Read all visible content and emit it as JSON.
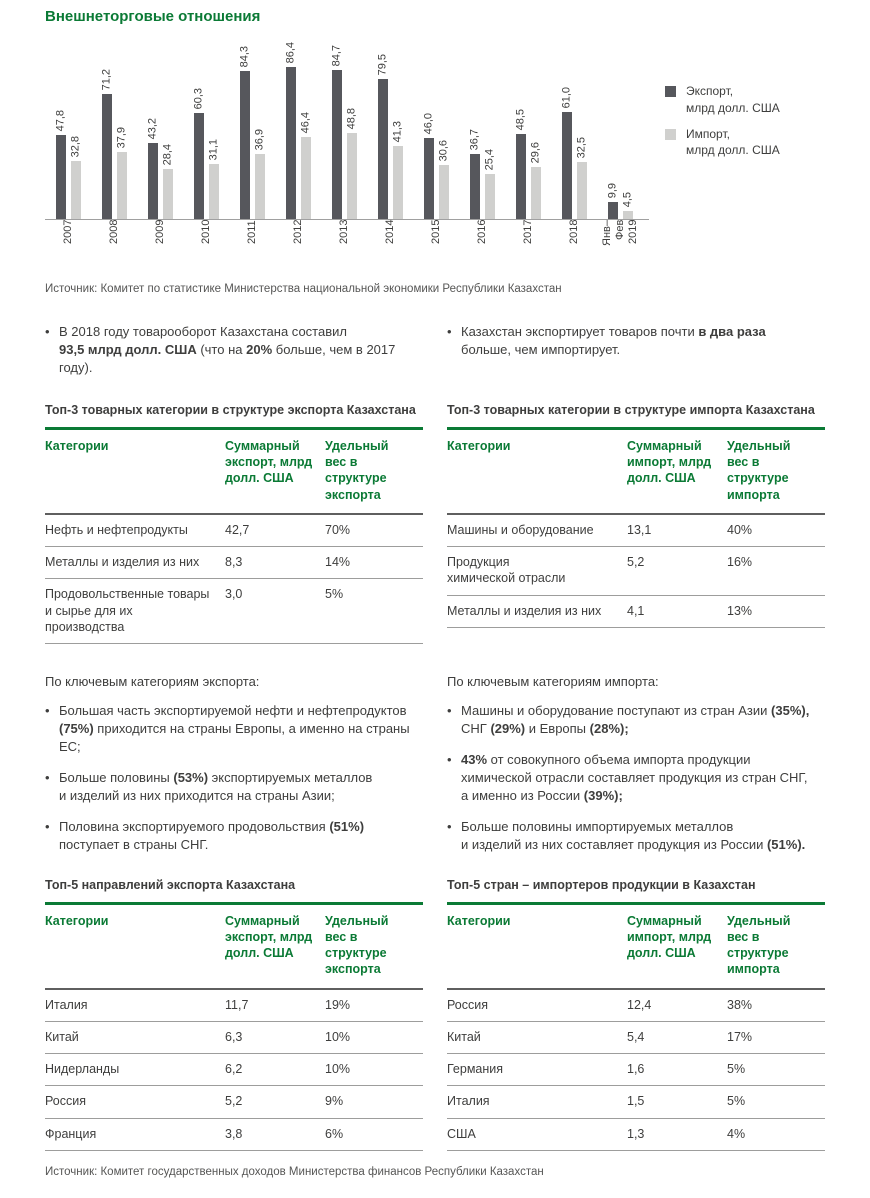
{
  "page": {
    "title": "Внешнеторговые отношения",
    "source_top": "Источник: Комитет по статистике Министерства национальной экономики Республики Казахстан",
    "source_bottom": "Источник: Комитет государственных доходов Министерства финансов Республики Казахстан"
  },
  "colors": {
    "green": "#0B7A35",
    "bar_dark": "#56575C",
    "bar_light": "#D0D0CE",
    "text": "#3E3E3D",
    "muted": "#565655"
  },
  "chart_data": {
    "type": "bar",
    "categories": [
      "2007",
      "2008",
      "2009",
      "2010",
      "2011",
      "2012",
      "2013",
      "2014",
      "2015",
      "2016",
      "2017",
      "2018",
      "Янв–\nФев\n2019"
    ],
    "series": [
      {
        "name": "Экспорт,\nмлрд долл. США",
        "color": "#56575C",
        "values": [
          47.8,
          71.2,
          43.2,
          60.3,
          84.3,
          86.4,
          84.7,
          79.5,
          46.0,
          36.7,
          48.5,
          61.0,
          9.9
        ]
      },
      {
        "name": "Импорт,\nмлрд долл. США",
        "color": "#D0D0CE",
        "values": [
          32.8,
          37.9,
          28.4,
          31.1,
          36.9,
          46.4,
          48.8,
          41.3,
          30.6,
          25.4,
          29.6,
          32.5,
          4.5
        ]
      }
    ],
    "title": "",
    "xlabel": "",
    "ylabel": "млрд долл. США",
    "ylim": [
      0,
      90
    ],
    "grid": false,
    "legend_position": "right",
    "value_labels": true,
    "decimal_separator": ","
  },
  "summary": {
    "left": [
      "В 2018 году товарооборот Казахстана составил\n**93,5 млрд долл. США** (что на **20%** больше, чем в 2017 году)."
    ],
    "right": [
      "Казахстан экспортирует товаров почти **в два раза**\nбольше, чем импортирует."
    ]
  },
  "tables": {
    "top_left": {
      "title": "Топ-3 товарных категории в структуре экспорта Казахстана",
      "headers": [
        "Категории",
        "Суммарный\nэкспорт, млрд\nдолл. США",
        "Удельный\nвес в структуре\nэкспорта"
      ],
      "rows": [
        [
          "Нефть и нефтепродукты",
          "42,7",
          "70%"
        ],
        [
          "Металлы и изделия из них",
          "8,3",
          "14%"
        ],
        [
          "Продовольственные товары\nи сырье для их производства",
          "3,0",
          "5%"
        ]
      ]
    },
    "top_right": {
      "title": "Топ-3 товарных категории в структуре импорта Казахстана",
      "headers": [
        "Категории",
        "Суммарный\nимпорт, млрд\nдолл. США",
        "Удельный\nвес в структуре\nимпорта"
      ],
      "rows": [
        [
          "Машины и оборудование",
          "13,1",
          "40%"
        ],
        [
          "Продукция\nхимической отрасли",
          "5,2",
          "16%"
        ],
        [
          "Металлы и изделия из них",
          "4,1",
          "13%"
        ]
      ]
    },
    "bottom_left": {
      "title": "Топ-5 направлений экспорта Казахстана",
      "headers": [
        "Категории",
        "Суммарный\nэкспорт, млрд\nдолл. США",
        "Удельный\nвес в структуре\nэкспорта"
      ],
      "rows": [
        [
          "Италия",
          "11,7",
          "19%"
        ],
        [
          "Китай",
          "6,3",
          "10%"
        ],
        [
          "Нидерланды",
          "6,2",
          "10%"
        ],
        [
          "Россия",
          "5,2",
          "9%"
        ],
        [
          "Франция",
          "3,8",
          "6%"
        ]
      ]
    },
    "bottom_right": {
      "title": "Топ-5 стран – импортеров продукции в Казахстан",
      "headers": [
        "Категории",
        "Суммарный\nимпорт, млрд\nдолл. США",
        "Удельный\nвес в структуре\nимпорта"
      ],
      "rows": [
        [
          "Россия",
          "12,4",
          "38%"
        ],
        [
          "Китай",
          "5,4",
          "17%"
        ],
        [
          "Германия",
          "1,6",
          "5%"
        ],
        [
          "Италия",
          "1,5",
          "5%"
        ],
        [
          "США",
          "1,3",
          "4%"
        ]
      ]
    }
  },
  "key_sections": {
    "export": {
      "heading": "По ключевым категориям экспорта:",
      "bullets": [
        "Большая часть экспортируемой нефти и нефтепродуктов\n**(75%)** приходится на страны Европы, а именно на страны ЕС;",
        "Больше половины **(53%)** экспортируемых металлов\nи изделий из них приходится на страны Азии;",
        "Половина экспортируемого продовольствия **(51%)**\nпоступает в страны СНГ."
      ]
    },
    "import": {
      "heading": "По ключевым категориям импорта:",
      "bullets": [
        "Машины и оборудование поступают из стран Азии **(35%),**\nСНГ **(29%)** и Европы **(28%);**",
        "**43%** от совокупного объема импорта продукции\nхимической отрасли составляет продукция из стран СНГ,\nа именно из России **(39%);**",
        "Больше половины импортируемых металлов\nи изделий из них составляет продукция из России **(51%).**"
      ]
    }
  }
}
